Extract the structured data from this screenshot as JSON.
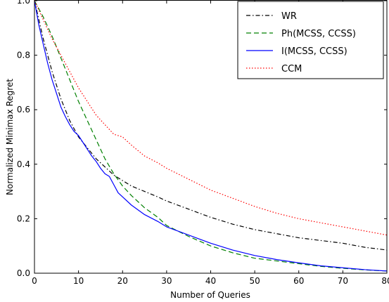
{
  "chart_data": {
    "type": "line",
    "title": "",
    "xlabel": "Number of Queries",
    "ylabel": "Normalized Minimax Regret",
    "xlim": [
      0,
      80
    ],
    "ylim": [
      0.0,
      1.0
    ],
    "xticks": [
      "0",
      "10",
      "20",
      "30",
      "40",
      "50",
      "60",
      "70",
      "80"
    ],
    "yticks": [
      "0.0",
      "0.2",
      "0.4",
      "0.6",
      "0.8",
      "1.0"
    ],
    "grid": false,
    "legend_position": "top-right",
    "series": [
      {
        "name": "WR",
        "color": "#000000",
        "dash": "dashdot",
        "x": [
          0,
          1,
          2,
          3,
          4,
          5,
          6,
          7,
          8,
          9,
          10,
          12,
          14,
          16,
          18,
          20,
          22,
          25,
          28,
          30,
          35,
          40,
          45,
          50,
          55,
          60,
          65,
          70,
          75,
          80
        ],
        "y": [
          1.0,
          0.93,
          0.86,
          0.8,
          0.74,
          0.69,
          0.64,
          0.6,
          0.56,
          0.53,
          0.5,
          0.46,
          0.42,
          0.39,
          0.36,
          0.34,
          0.32,
          0.3,
          0.28,
          0.265,
          0.235,
          0.205,
          0.18,
          0.16,
          0.145,
          0.13,
          0.12,
          0.11,
          0.095,
          0.085
        ]
      },
      {
        "name": "Ph(MCSS, CCSS)",
        "color": "#008000",
        "dash": "dashed",
        "x": [
          0,
          2,
          4,
          6,
          8,
          10,
          12,
          14,
          16,
          18,
          20,
          22,
          25,
          28,
          30,
          35,
          40,
          45,
          50,
          55,
          60,
          65,
          70,
          75,
          80
        ],
        "y": [
          1.0,
          0.94,
          0.87,
          0.79,
          0.71,
          0.63,
          0.56,
          0.49,
          0.42,
          0.365,
          0.32,
          0.285,
          0.24,
          0.205,
          0.175,
          0.135,
          0.1,
          0.075,
          0.055,
          0.045,
          0.035,
          0.025,
          0.018,
          0.012,
          0.008
        ]
      },
      {
        "name": "I(MCSS, CCSS)",
        "color": "#0000ff",
        "dash": "solid",
        "x": [
          0,
          1,
          2,
          3,
          4,
          5,
          6,
          7,
          8,
          9,
          10,
          11,
          12,
          13,
          14,
          15,
          16,
          17,
          18,
          19,
          20,
          22,
          25,
          28,
          30,
          35,
          40,
          45,
          50,
          55,
          60,
          65,
          70,
          75,
          80
        ],
        "y": [
          1.0,
          0.91,
          0.84,
          0.77,
          0.71,
          0.66,
          0.61,
          0.575,
          0.545,
          0.52,
          0.505,
          0.48,
          0.455,
          0.43,
          0.41,
          0.385,
          0.365,
          0.355,
          0.325,
          0.295,
          0.28,
          0.25,
          0.215,
          0.19,
          0.17,
          0.14,
          0.11,
          0.085,
          0.065,
          0.05,
          0.038,
          0.027,
          0.02,
          0.013,
          0.008
        ]
      },
      {
        "name": "CCM",
        "color": "#ff0000",
        "dash": "dotted",
        "x": [
          0,
          2,
          4,
          6,
          8,
          10,
          12,
          14,
          16,
          18,
          20,
          22,
          25,
          28,
          30,
          35,
          40,
          45,
          50,
          55,
          60,
          65,
          70,
          75,
          80
        ],
        "y": [
          1.0,
          0.93,
          0.86,
          0.8,
          0.74,
          0.68,
          0.63,
          0.58,
          0.545,
          0.51,
          0.5,
          0.47,
          0.43,
          0.405,
          0.385,
          0.345,
          0.305,
          0.275,
          0.245,
          0.22,
          0.2,
          0.185,
          0.17,
          0.155,
          0.14
        ]
      }
    ]
  }
}
